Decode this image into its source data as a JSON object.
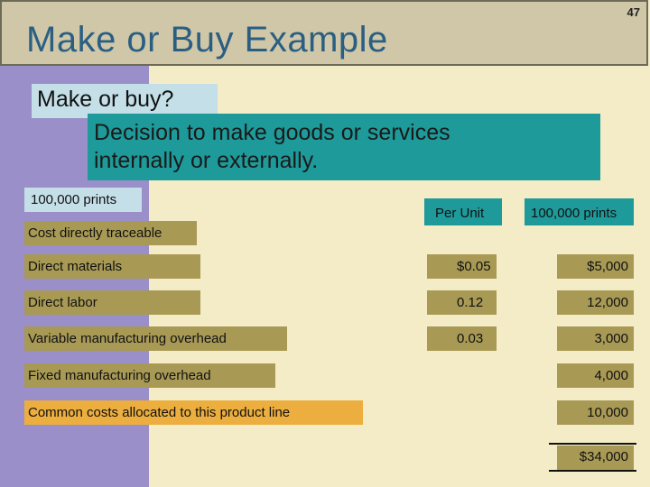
{
  "slide": {
    "number": "47",
    "title": "Make or Buy Example"
  },
  "question": "Make or buy?",
  "definition": {
    "line1": "Decision to make goods or services",
    "line2": "internally or externally."
  },
  "prints_label": "100,000 prints",
  "table": {
    "col_per_unit": "Per Unit",
    "col_prints": "100,000 prints",
    "section_label": "Cost directly traceable",
    "rows": [
      {
        "label": "Direct materials",
        "per_unit": "$0.05",
        "total": "$5,000"
      },
      {
        "label": "Direct labor",
        "per_unit": "0.12",
        "total": "12,000"
      },
      {
        "label": "Variable manufacturing overhead",
        "per_unit": "0.03",
        "total": "3,000"
      },
      {
        "label": "Fixed manufacturing overhead",
        "per_unit": "",
        "total": "4,000"
      },
      {
        "label": "Common costs allocated to this product line",
        "per_unit": "",
        "total": "10,000"
      }
    ],
    "grand_total": "$34,000"
  },
  "colors": {
    "background": "#f4ecc6",
    "left_band": "#9a8fc8",
    "title_text": "#2a5f83",
    "teal": "#1e9a9a",
    "light_blue": "#c4dfe8",
    "olive": "#a89a55",
    "orange": "#ecae3e"
  }
}
